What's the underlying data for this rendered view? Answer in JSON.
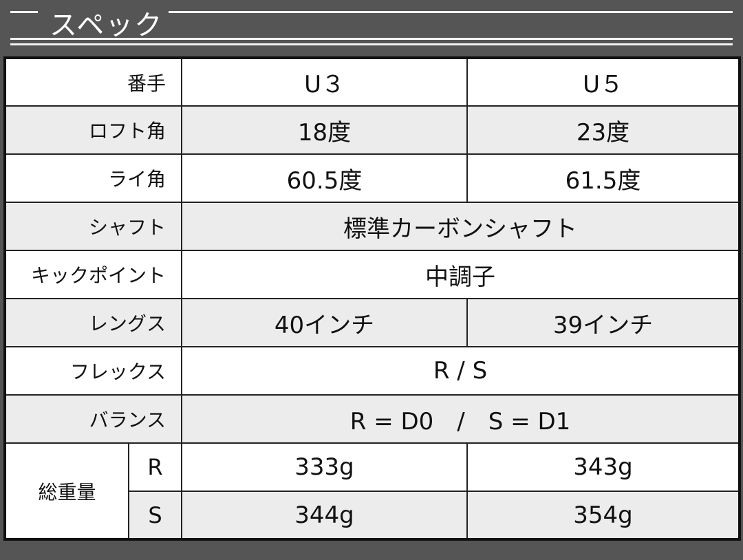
{
  "title": "スペック",
  "rows": [
    {
      "label": "番手",
      "values": [
        "U３",
        "U５"
      ]
    },
    {
      "label": "ロフト角",
      "values": [
        "18度",
        "23度"
      ]
    },
    {
      "label": "ライ角",
      "values": [
        "60.5度",
        "61.5度"
      ]
    },
    {
      "label": "シャフト",
      "value": "標準カーボンシャフト"
    },
    {
      "label": "キックポイント",
      "value": "中調子"
    },
    {
      "label": "レングス",
      "values": [
        "40インチ",
        "39インチ"
      ]
    },
    {
      "label": "フレックス",
      "value": "R / S"
    },
    {
      "label": "バランス",
      "value": "R = D0　/　S = D1"
    }
  ],
  "weight": {
    "label": "総重量",
    "rows": [
      {
        "flex": "R",
        "values": [
          "333g",
          "343g"
        ]
      },
      {
        "flex": "S",
        "values": [
          "344g",
          "354g"
        ]
      }
    ]
  }
}
